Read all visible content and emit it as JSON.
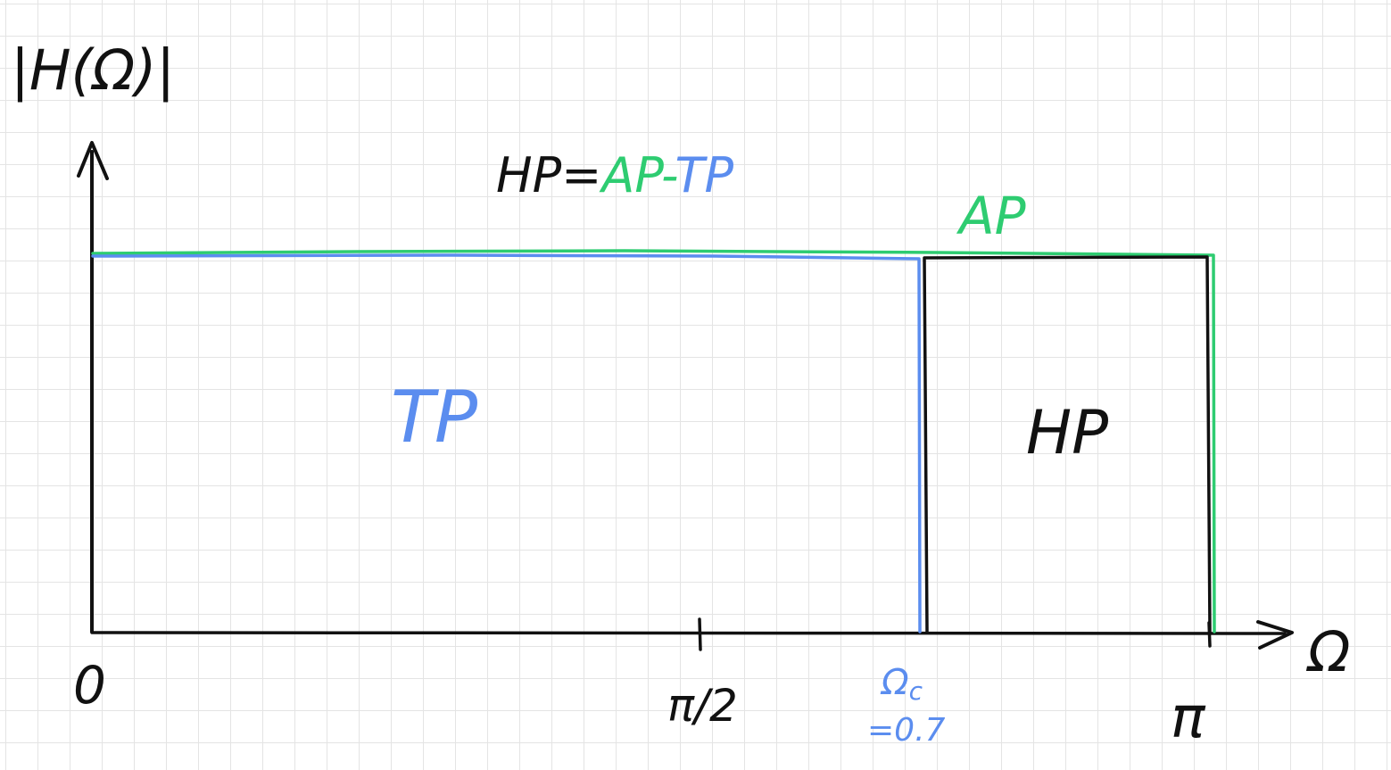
{
  "title": "|H(Ω)|",
  "equation": {
    "hp": "HP=",
    "ap": "AP",
    "minus": "-",
    "tp": "TP"
  },
  "axis": {
    "y_label": "|H(Ω)|",
    "x_label": "Ω",
    "ticks": {
      "zero": "0",
      "half_pi": "π/2",
      "cutoff_symbol": "Ω",
      "cutoff_sub": "c",
      "cutoff_value": "=0.7",
      "pi": "π"
    }
  },
  "regions": {
    "tp": "TP",
    "hp": "HP",
    "ap": "AP"
  },
  "colors": {
    "ink": "#111111",
    "tp": "#5b8def",
    "ap": "#2ecc71",
    "hp": "#111111",
    "grid": "#e4e4e4"
  }
}
